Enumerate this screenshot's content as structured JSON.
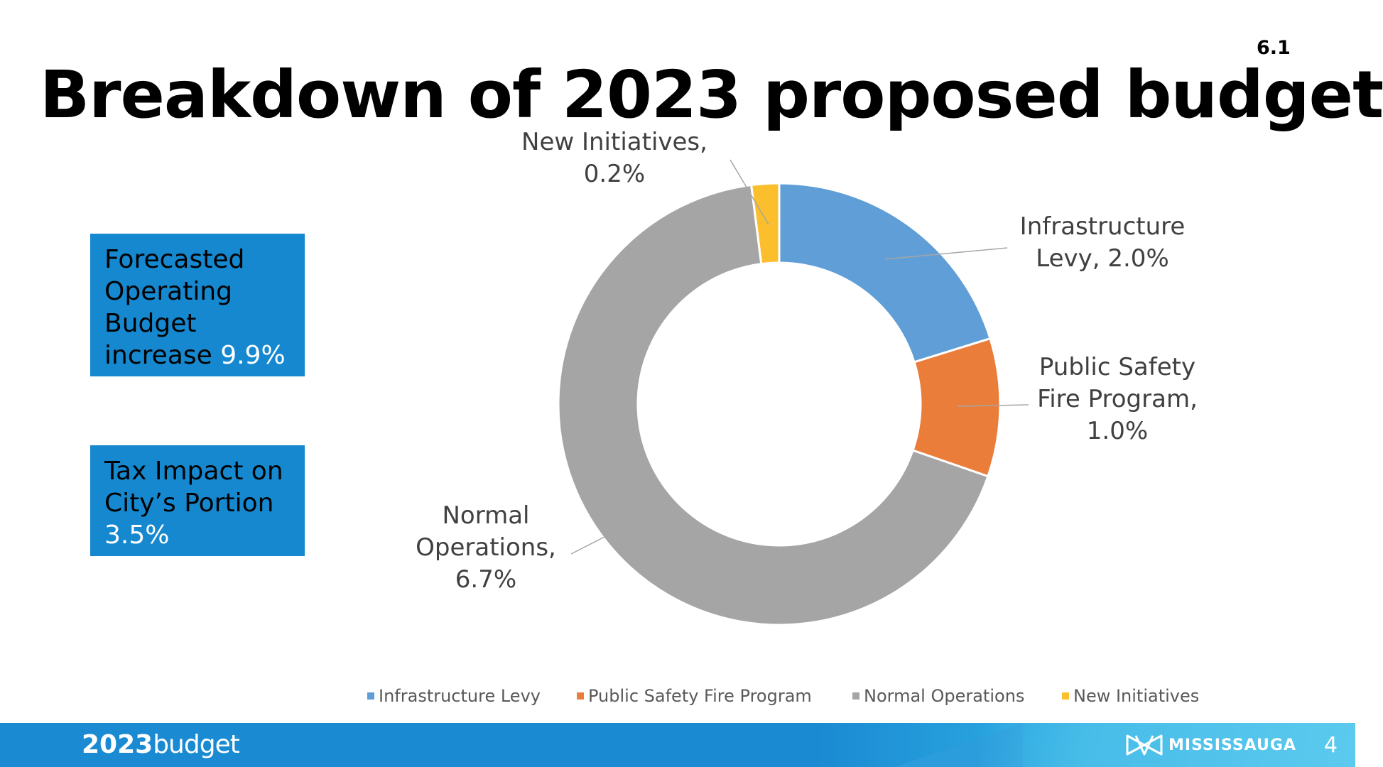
{
  "slide_number": "6.1",
  "title": "Breakdown of 2023 proposed budget",
  "info_boxes": [
    {
      "text": "Forecasted Operating Budget increase",
      "highlight": "9.9%"
    },
    {
      "text": "Tax Impact on City’s Portion",
      "highlight": "3.5%"
    }
  ],
  "chart_data": {
    "type": "pie",
    "variant": "donut",
    "title": "",
    "categories": [
      "Infrastructure Levy",
      "Public Safety Fire Program",
      "Normal Operations",
      "New Initiatives"
    ],
    "values": [
      2.0,
      1.0,
      6.7,
      0.2
    ],
    "unit": "%",
    "colors": [
      "#5f9ed6",
      "#ea7d3a",
      "#a5a5a5",
      "#fbbf2d"
    ],
    "data_labels": [
      [
        "Infrastructure",
        "Levy, 2.0%"
      ],
      [
        "Public Safety",
        "Fire Program,",
        "1.0%"
      ],
      [
        "Normal",
        "Operations,",
        "6.7%"
      ],
      [
        "New Initiatives,",
        "0.2%"
      ]
    ],
    "legend_position": "bottom"
  },
  "footer": {
    "logo_bold": "2023",
    "logo_light": "budget",
    "brand": "MISSISSAUGA",
    "page_number": "4"
  }
}
